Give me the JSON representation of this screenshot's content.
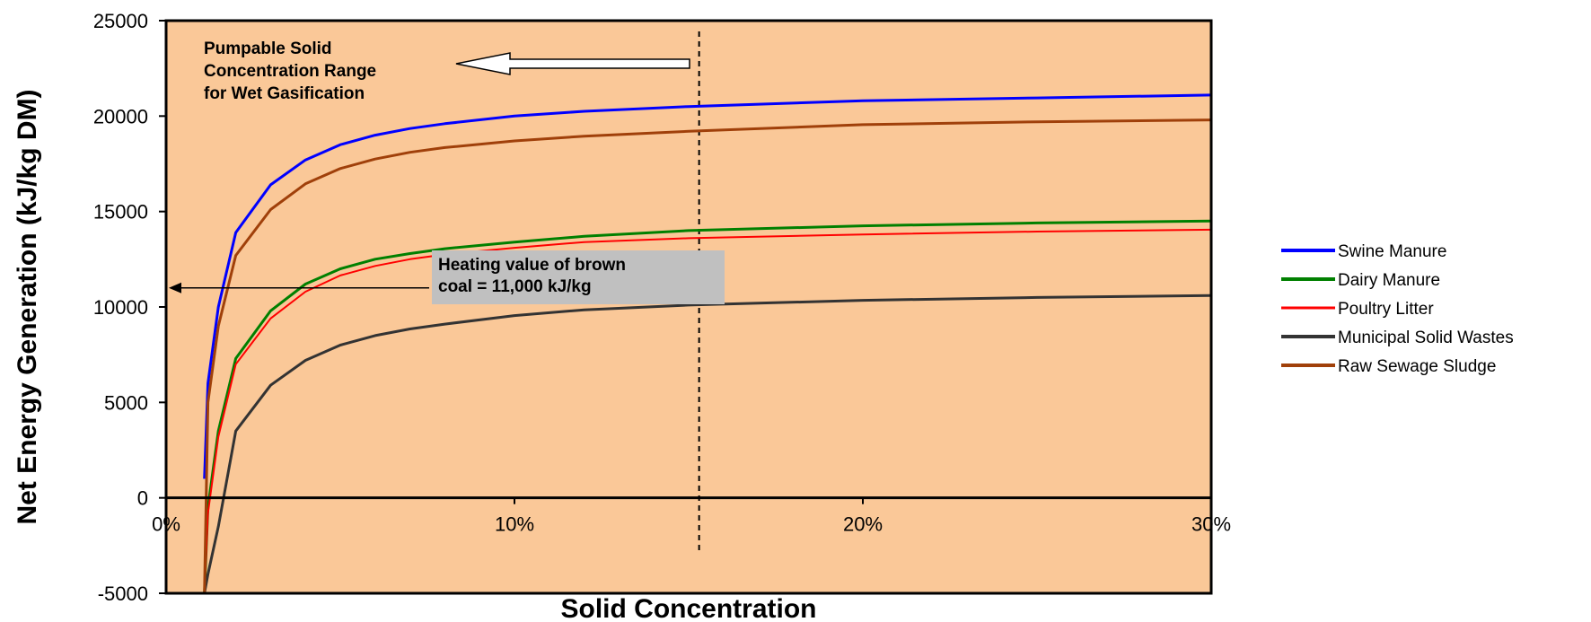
{
  "chart_data": {
    "type": "line",
    "title": "",
    "xlabel": "Solid Concentration",
    "ylabel": "Net Energy Generation (kJ/kg DM)",
    "xlim": [
      0,
      30
    ],
    "ylim": [
      -5000,
      25000
    ],
    "x_ticks": [
      0,
      10,
      20,
      30
    ],
    "x_tick_labels": [
      "0%",
      "10%",
      "20%",
      "30%"
    ],
    "y_ticks": [
      -5000,
      0,
      5000,
      10000,
      15000,
      20000,
      25000
    ],
    "y_tick_labels": [
      "-5000",
      "0",
      "5000",
      "10000",
      "15000",
      "20000",
      "25000"
    ],
    "grid": false,
    "plot_background": "#FAC898",
    "legend_position": "right",
    "x": [
      1.1,
      1.2,
      1.5,
      2,
      3,
      4,
      5,
      6,
      7,
      8,
      10,
      12,
      15,
      20,
      25,
      30
    ],
    "series": [
      {
        "name": "Swine Manure",
        "color": "#0000FF",
        "stroke": 3,
        "values": [
          1000,
          6000,
          10000,
          13900,
          16400,
          17700,
          18500,
          19000,
          19350,
          19600,
          20000,
          20250,
          20500,
          20800,
          20950,
          21100
        ]
      },
      {
        "name": "Dairy Manure",
        "color": "#008000",
        "stroke": 3,
        "values": [
          -5000,
          -500,
          3500,
          7300,
          9800,
          11200,
          12000,
          12500,
          12800,
          13050,
          13400,
          13700,
          14000,
          14250,
          14400,
          14500
        ]
      },
      {
        "name": "Poultry Litter",
        "color": "#FF0000",
        "stroke": 2,
        "values": [
          -5000,
          -800,
          3200,
          7000,
          9400,
          10800,
          11650,
          12150,
          12500,
          12750,
          13100,
          13400,
          13600,
          13800,
          13950,
          14050
        ]
      },
      {
        "name": "Municipal Solid Wastes",
        "color": "#333333",
        "stroke": 3,
        "values": [
          -5000,
          -4000,
          -1500,
          3500,
          5900,
          7200,
          8000,
          8500,
          8850,
          9100,
          9550,
          9850,
          10100,
          10350,
          10500,
          10600
        ]
      },
      {
        "name": "Raw Sewage Sludge",
        "color": "#A0400A",
        "stroke": 3,
        "values": [
          -5000,
          5000,
          9000,
          12700,
          15100,
          16450,
          17250,
          17750,
          18100,
          18350,
          18700,
          18950,
          19200,
          19550,
          19700,
          19800
        ]
      }
    ],
    "reference_lines": [
      {
        "orientation": "vertical",
        "x": 15.3,
        "style": "dashed",
        "color": "#000000"
      }
    ],
    "annotations": [
      {
        "id": "pumpable",
        "lines": [
          "Pumpable Solid",
          "Concentration Range",
          "for Wet Gasification"
        ],
        "arrow": "left"
      },
      {
        "id": "brown-coal",
        "lines": [
          "Heating value of brown",
          "coal = 11,000 kJ/kg"
        ],
        "y_value": 11000,
        "box_color": "#C0C0C0",
        "arrow": "left"
      }
    ]
  }
}
